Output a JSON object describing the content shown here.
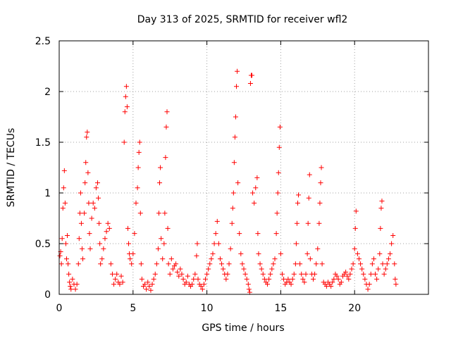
{
  "chart_data": {
    "type": "scatter",
    "title": "Day 313 of 2025, SRMTID for receiver wfl2",
    "xlabel": "GPS time / hours",
    "ylabel": "SRMTID / TECUs",
    "xlim": [
      0,
      25
    ],
    "ylim": [
      0,
      2.5
    ],
    "x_ticks": [
      0,
      5,
      10,
      15,
      20
    ],
    "x_tick_labels": [
      "0",
      "5",
      "10",
      "15",
      "20"
    ],
    "y_ticks": [
      0,
      0.5,
      1,
      1.5,
      2,
      2.5
    ],
    "y_tick_labels": [
      "0",
      "0.5",
      "1",
      "1.5",
      "2",
      "2.5"
    ],
    "grid": true,
    "marker": "+",
    "color": "#ff0000",
    "series": [
      {
        "name": "SRMTID",
        "points": [
          [
            0.05,
            0.38
          ],
          [
            0.1,
            0.42
          ],
          [
            0.15,
            0.3
          ],
          [
            0.2,
            0.55
          ],
          [
            0.25,
            0.85
          ],
          [
            0.3,
            1.05
          ],
          [
            0.35,
            1.22
          ],
          [
            0.4,
            0.9
          ],
          [
            0.45,
            0.5
          ],
          [
            0.5,
            0.35
          ],
          [
            0.55,
            0.58
          ],
          [
            0.6,
            0.3
          ],
          [
            0.65,
            0.2
          ],
          [
            0.7,
            0.12
          ],
          [
            0.75,
            0.08
          ],
          [
            0.8,
            0.05
          ],
          [
            0.9,
            0.15
          ],
          [
            1.0,
            0.1
          ],
          [
            1.1,
            0.05
          ],
          [
            1.2,
            0.1
          ],
          [
            1.3,
            0.3
          ],
          [
            1.35,
            0.55
          ],
          [
            1.4,
            0.8
          ],
          [
            1.45,
            1.0
          ],
          [
            1.5,
            0.7
          ],
          [
            1.55,
            0.45
          ],
          [
            1.6,
            0.35
          ],
          [
            1.7,
            0.8
          ],
          [
            1.75,
            1.1
          ],
          [
            1.8,
            1.3
          ],
          [
            1.85,
            1.55
          ],
          [
            1.9,
            1.6
          ],
          [
            1.95,
            1.2
          ],
          [
            2.0,
            0.9
          ],
          [
            2.05,
            0.6
          ],
          [
            2.1,
            0.45
          ],
          [
            2.2,
            0.75
          ],
          [
            2.3,
            0.9
          ],
          [
            2.4,
            0.85
          ],
          [
            2.5,
            1.05
          ],
          [
            2.6,
            1.1
          ],
          [
            2.65,
            0.95
          ],
          [
            2.7,
            0.7
          ],
          [
            2.75,
            0.5
          ],
          [
            2.8,
            0.3
          ],
          [
            2.9,
            0.35
          ],
          [
            3.0,
            0.45
          ],
          [
            3.1,
            0.55
          ],
          [
            3.2,
            0.62
          ],
          [
            3.3,
            0.7
          ],
          [
            3.4,
            0.65
          ],
          [
            3.5,
            0.3
          ],
          [
            3.6,
            0.2
          ],
          [
            3.7,
            0.1
          ],
          [
            3.8,
            0.15
          ],
          [
            3.9,
            0.2
          ],
          [
            4.0,
            0.12
          ],
          [
            4.1,
            0.1
          ],
          [
            4.2,
            0.18
          ],
          [
            4.3,
            0.12
          ],
          [
            4.4,
            1.5
          ],
          [
            4.45,
            1.8
          ],
          [
            4.5,
            1.95
          ],
          [
            4.55,
            2.05
          ],
          [
            4.6,
            1.85
          ],
          [
            4.65,
            0.65
          ],
          [
            4.7,
            0.5
          ],
          [
            4.75,
            0.4
          ],
          [
            4.8,
            0.35
          ],
          [
            4.9,
            0.3
          ],
          [
            5.0,
            0.4
          ],
          [
            5.1,
            0.6
          ],
          [
            5.2,
            0.9
          ],
          [
            5.3,
            1.05
          ],
          [
            5.35,
            1.25
          ],
          [
            5.4,
            1.4
          ],
          [
            5.45,
            1.5
          ],
          [
            5.5,
            0.8
          ],
          [
            5.55,
            0.3
          ],
          [
            5.6,
            0.15
          ],
          [
            5.7,
            0.08
          ],
          [
            5.8,
            0.1
          ],
          [
            5.9,
            0.05
          ],
          [
            6.0,
            0.12
          ],
          [
            6.1,
            0.08
          ],
          [
            6.2,
            0.04
          ],
          [
            6.3,
            0.1
          ],
          [
            6.4,
            0.15
          ],
          [
            6.5,
            0.2
          ],
          [
            6.6,
            0.3
          ],
          [
            6.7,
            0.45
          ],
          [
            6.75,
            0.8
          ],
          [
            6.8,
            1.1
          ],
          [
            6.85,
            1.25
          ],
          [
            6.9,
            0.55
          ],
          [
            7.0,
            0.35
          ],
          [
            7.1,
            0.5
          ],
          [
            7.15,
            0.8
          ],
          [
            7.2,
            1.35
          ],
          [
            7.25,
            1.65
          ],
          [
            7.3,
            1.8
          ],
          [
            7.35,
            0.65
          ],
          [
            7.4,
            0.3
          ],
          [
            7.5,
            0.2
          ],
          [
            7.6,
            0.35
          ],
          [
            7.7,
            0.25
          ],
          [
            7.8,
            0.28
          ],
          [
            7.9,
            0.3
          ],
          [
            8.0,
            0.22
          ],
          [
            8.1,
            0.18
          ],
          [
            8.2,
            0.25
          ],
          [
            8.3,
            0.2
          ],
          [
            8.4,
            0.15
          ],
          [
            8.5,
            0.1
          ],
          [
            8.6,
            0.12
          ],
          [
            8.7,
            0.18
          ],
          [
            8.8,
            0.1
          ],
          [
            8.9,
            0.08
          ],
          [
            9.0,
            0.1
          ],
          [
            9.1,
            0.15
          ],
          [
            9.2,
            0.2
          ],
          [
            9.3,
            0.38
          ],
          [
            9.35,
            0.5
          ],
          [
            9.4,
            0.15
          ],
          [
            9.5,
            0.1
          ],
          [
            9.6,
            0.08
          ],
          [
            9.7,
            0.05
          ],
          [
            9.8,
            0.1
          ],
          [
            9.9,
            0.15
          ],
          [
            10.0,
            0.2
          ],
          [
            10.1,
            0.25
          ],
          [
            10.2,
            0.3
          ],
          [
            10.3,
            0.35
          ],
          [
            10.4,
            0.4
          ],
          [
            10.5,
            0.5
          ],
          [
            10.6,
            0.6
          ],
          [
            10.7,
            0.72
          ],
          [
            10.8,
            0.5
          ],
          [
            10.9,
            0.35
          ],
          [
            11.0,
            0.3
          ],
          [
            11.1,
            0.25
          ],
          [
            11.2,
            0.2
          ],
          [
            11.3,
            0.15
          ],
          [
            11.4,
            0.2
          ],
          [
            11.5,
            0.3
          ],
          [
            11.6,
            0.45
          ],
          [
            11.7,
            0.7
          ],
          [
            11.75,
            0.85
          ],
          [
            11.8,
            1.0
          ],
          [
            11.85,
            1.3
          ],
          [
            11.9,
            1.55
          ],
          [
            11.95,
            1.75
          ],
          [
            12.0,
            2.05
          ],
          [
            12.05,
            2.2
          ],
          [
            12.1,
            1.1
          ],
          [
            12.2,
            0.6
          ],
          [
            12.3,
            0.4
          ],
          [
            12.4,
            0.3
          ],
          [
            12.5,
            0.25
          ],
          [
            12.6,
            0.2
          ],
          [
            12.7,
            0.15
          ],
          [
            12.8,
            0.1
          ],
          [
            12.85,
            0.05
          ],
          [
            12.9,
            0.02
          ],
          [
            12.95,
            2.08
          ],
          [
            13.0,
            2.16
          ],
          [
            13.05,
            2.16
          ],
          [
            13.1,
            1.0
          ],
          [
            13.2,
            0.9
          ],
          [
            13.3,
            1.05
          ],
          [
            13.4,
            1.15
          ],
          [
            13.45,
            0.6
          ],
          [
            13.5,
            0.4
          ],
          [
            13.6,
            0.3
          ],
          [
            13.7,
            0.25
          ],
          [
            13.8,
            0.2
          ],
          [
            13.9,
            0.15
          ],
          [
            14.0,
            0.12
          ],
          [
            14.1,
            0.1
          ],
          [
            14.2,
            0.15
          ],
          [
            14.3,
            0.2
          ],
          [
            14.4,
            0.25
          ],
          [
            14.5,
            0.3
          ],
          [
            14.6,
            0.35
          ],
          [
            14.7,
            0.6
          ],
          [
            14.75,
            0.8
          ],
          [
            14.8,
            1.0
          ],
          [
            14.85,
            1.2
          ],
          [
            14.9,
            1.45
          ],
          [
            14.95,
            1.65
          ],
          [
            15.0,
            0.4
          ],
          [
            15.1,
            0.2
          ],
          [
            15.2,
            0.15
          ],
          [
            15.3,
            0.1
          ],
          [
            15.4,
            0.12
          ],
          [
            15.5,
            0.15
          ],
          [
            15.6,
            0.12
          ],
          [
            15.7,
            0.1
          ],
          [
            15.8,
            0.15
          ],
          [
            15.9,
            0.2
          ],
          [
            16.0,
            0.3
          ],
          [
            16.05,
            0.5
          ],
          [
            16.1,
            0.7
          ],
          [
            16.15,
            0.9
          ],
          [
            16.2,
            0.98
          ],
          [
            16.3,
            0.3
          ],
          [
            16.4,
            0.2
          ],
          [
            16.5,
            0.15
          ],
          [
            16.6,
            0.12
          ],
          [
            16.7,
            0.2
          ],
          [
            16.8,
            0.4
          ],
          [
            16.85,
            0.7
          ],
          [
            16.9,
            0.95
          ],
          [
            16.95,
            1.18
          ],
          [
            17.0,
            0.35
          ],
          [
            17.1,
            0.2
          ],
          [
            17.2,
            0.15
          ],
          [
            17.3,
            0.2
          ],
          [
            17.4,
            0.3
          ],
          [
            17.5,
            0.45
          ],
          [
            17.6,
            0.7
          ],
          [
            17.65,
            0.9
          ],
          [
            17.7,
            1.1
          ],
          [
            17.75,
            1.25
          ],
          [
            17.8,
            0.3
          ],
          [
            17.9,
            0.12
          ],
          [
            18.0,
            0.1
          ],
          [
            18.1,
            0.08
          ],
          [
            18.2,
            0.12
          ],
          [
            18.3,
            0.1
          ],
          [
            18.4,
            0.08
          ],
          [
            18.5,
            0.12
          ],
          [
            18.6,
            0.15
          ],
          [
            18.7,
            0.2
          ],
          [
            18.8,
            0.18
          ],
          [
            18.9,
            0.15
          ],
          [
            19.0,
            0.1
          ],
          [
            19.1,
            0.12
          ],
          [
            19.2,
            0.18
          ],
          [
            19.3,
            0.2
          ],
          [
            19.4,
            0.22
          ],
          [
            19.5,
            0.18
          ],
          [
            19.6,
            0.15
          ],
          [
            19.7,
            0.2
          ],
          [
            19.8,
            0.25
          ],
          [
            19.9,
            0.3
          ],
          [
            20.0,
            0.45
          ],
          [
            20.05,
            0.65
          ],
          [
            20.1,
            0.82
          ],
          [
            20.2,
            0.4
          ],
          [
            20.3,
            0.35
          ],
          [
            20.4,
            0.3
          ],
          [
            20.5,
            0.25
          ],
          [
            20.6,
            0.2
          ],
          [
            20.7,
            0.15
          ],
          [
            20.8,
            0.1
          ],
          [
            20.9,
            0.05
          ],
          [
            21.0,
            0.1
          ],
          [
            21.1,
            0.2
          ],
          [
            21.2,
            0.3
          ],
          [
            21.3,
            0.35
          ],
          [
            21.4,
            0.2
          ],
          [
            21.5,
            0.15
          ],
          [
            21.6,
            0.25
          ],
          [
            21.7,
            0.4
          ],
          [
            21.75,
            0.65
          ],
          [
            21.8,
            0.85
          ],
          [
            21.85,
            0.92
          ],
          [
            21.9,
            0.3
          ],
          [
            22.0,
            0.2
          ],
          [
            22.1,
            0.25
          ],
          [
            22.2,
            0.3
          ],
          [
            22.3,
            0.35
          ],
          [
            22.4,
            0.4
          ],
          [
            22.5,
            0.5
          ],
          [
            22.6,
            0.58
          ],
          [
            22.7,
            0.3
          ],
          [
            22.75,
            0.15
          ],
          [
            22.8,
            0.1
          ]
        ]
      }
    ]
  }
}
